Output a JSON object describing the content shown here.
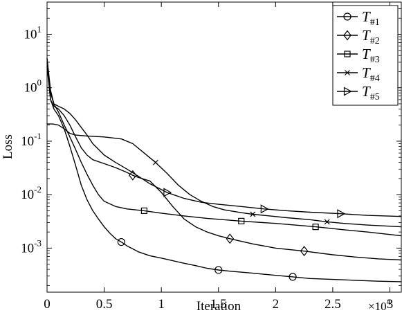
{
  "chart_data": {
    "type": "line",
    "title": "",
    "xlabel": "Iteration",
    "ylabel": "Loss",
    "x_multiplier_base": "×10",
    "x_multiplier_exp": "4",
    "xlim": [
      0,
      31000
    ],
    "ylim": [
      0.00015,
      40
    ],
    "yscale": "log",
    "x_ticks": [
      {
        "value": 0,
        "label": "0"
      },
      {
        "value": 5000,
        "label": "0.5"
      },
      {
        "value": 10000,
        "label": "1"
      },
      {
        "value": 15000,
        "label": "1.5"
      },
      {
        "value": 20000,
        "label": "2"
      },
      {
        "value": 25000,
        "label": "2.5"
      },
      {
        "value": 30000,
        "label": "3"
      }
    ],
    "y_ticks": [
      {
        "value": 0.001,
        "base": "10",
        "exp": "-3"
      },
      {
        "value": 0.01,
        "base": "10",
        "exp": "-2"
      },
      {
        "value": 0.1,
        "base": "10",
        "exp": "-1"
      },
      {
        "value": 1,
        "base": "10",
        "exp": "0"
      },
      {
        "value": 10,
        "base": "10",
        "exp": "1"
      }
    ],
    "grid": false,
    "legend_position": "top-right",
    "series": [
      {
        "name": "T",
        "subscript": "#1",
        "marker": "circle",
        "color": "#000000",
        "points": [
          [
            0,
            3.5
          ],
          [
            300,
            0.6
          ],
          [
            600,
            0.4
          ],
          [
            1000,
            0.3
          ],
          [
            1500,
            0.17
          ],
          [
            2000,
            0.08
          ],
          [
            2500,
            0.035
          ],
          [
            3000,
            0.015
          ],
          [
            3500,
            0.008
          ],
          [
            4000,
            0.005
          ],
          [
            4500,
            0.0035
          ],
          [
            5000,
            0.0025
          ],
          [
            5500,
            0.0019
          ],
          [
            6000,
            0.0015
          ],
          [
            6500,
            0.0013
          ],
          [
            7000,
            0.0011
          ],
          [
            8000,
            0.00085
          ],
          [
            9000,
            0.00072
          ],
          [
            10000,
            0.00065
          ],
          [
            11000,
            0.00058
          ],
          [
            12000,
            0.00052
          ],
          [
            13000,
            0.00047
          ],
          [
            14000,
            0.00042
          ],
          [
            15000,
            0.00039
          ],
          [
            16000,
            0.00037
          ],
          [
            18000,
            0.00034
          ],
          [
            20000,
            0.00031
          ],
          [
            21500,
            0.00029
          ],
          [
            23000,
            0.00027
          ],
          [
            25000,
            0.00026
          ],
          [
            27000,
            0.00025
          ],
          [
            29000,
            0.00024
          ],
          [
            31000,
            0.000235
          ]
        ],
        "markers": [
          [
            6500,
            0.0013
          ],
          [
            15000,
            0.00039
          ],
          [
            21500,
            0.00029
          ]
        ]
      },
      {
        "name": "T",
        "subscript": "#2",
        "marker": "diamond",
        "color": "#000000",
        "points": [
          [
            0,
            2.5
          ],
          [
            300,
            0.6
          ],
          [
            600,
            0.45
          ],
          [
            1000,
            0.4
          ],
          [
            1500,
            0.3
          ],
          [
            2000,
            0.2
          ],
          [
            2500,
            0.12
          ],
          [
            3000,
            0.075
          ],
          [
            3500,
            0.055
          ],
          [
            4000,
            0.045
          ],
          [
            5000,
            0.038
          ],
          [
            6000,
            0.032
          ],
          [
            7000,
            0.026
          ],
          [
            7500,
            0.023
          ],
          [
            8000,
            0.021
          ],
          [
            9000,
            0.018
          ],
          [
            10000,
            0.011
          ],
          [
            11000,
            0.006
          ],
          [
            12000,
            0.0035
          ],
          [
            13000,
            0.0025
          ],
          [
            14000,
            0.002
          ],
          [
            15000,
            0.0017
          ],
          [
            16000,
            0.0015
          ],
          [
            18000,
            0.0012
          ],
          [
            20000,
            0.001
          ],
          [
            22500,
            0.00088
          ],
          [
            25000,
            0.00075
          ],
          [
            27000,
            0.00068
          ],
          [
            29000,
            0.00063
          ],
          [
            31000,
            0.0006
          ]
        ],
        "markers": [
          [
            7500,
            0.023
          ],
          [
            16000,
            0.0015
          ],
          [
            22500,
            0.00088
          ]
        ]
      },
      {
        "name": "T",
        "subscript": "#3",
        "marker": "square",
        "color": "#000000",
        "points": [
          [
            0,
            3.0
          ],
          [
            300,
            0.8
          ],
          [
            600,
            0.5
          ],
          [
            1000,
            0.35
          ],
          [
            1500,
            0.2
          ],
          [
            2000,
            0.12
          ],
          [
            2500,
            0.07
          ],
          [
            3000,
            0.04
          ],
          [
            3500,
            0.024
          ],
          [
            4000,
            0.015
          ],
          [
            4500,
            0.01
          ],
          [
            5000,
            0.0075
          ],
          [
            6000,
            0.006
          ],
          [
            7000,
            0.0054
          ],
          [
            8500,
            0.005
          ],
          [
            10000,
            0.0045
          ],
          [
            12000,
            0.004
          ],
          [
            14000,
            0.0036
          ],
          [
            17000,
            0.0032
          ],
          [
            20000,
            0.0029
          ],
          [
            23500,
            0.0025
          ],
          [
            26000,
            0.0022
          ],
          [
            28000,
            0.002
          ],
          [
            31000,
            0.0017
          ]
        ],
        "markers": [
          [
            8500,
            0.005
          ],
          [
            17000,
            0.0032
          ],
          [
            23500,
            0.0025
          ]
        ]
      },
      {
        "name": "T",
        "subscript": "#4",
        "marker": "x",
        "color": "#000000",
        "points": [
          [
            0,
            0.21
          ],
          [
            500,
            0.21
          ],
          [
            1000,
            0.2
          ],
          [
            1500,
            0.17
          ],
          [
            2000,
            0.14
          ],
          [
            2500,
            0.13
          ],
          [
            3500,
            0.125
          ],
          [
            5000,
            0.12
          ],
          [
            6500,
            0.11
          ],
          [
            7500,
            0.09
          ],
          [
            8500,
            0.06
          ],
          [
            9500,
            0.04
          ],
          [
            10500,
            0.025
          ],
          [
            11500,
            0.015
          ],
          [
            12500,
            0.01
          ],
          [
            13500,
            0.0075
          ],
          [
            14500,
            0.006
          ],
          [
            15500,
            0.0052
          ],
          [
            17000,
            0.0046
          ],
          [
            18000,
            0.0043
          ],
          [
            19500,
            0.004
          ],
          [
            21000,
            0.0037
          ],
          [
            23000,
            0.0034
          ],
          [
            24500,
            0.0031
          ],
          [
            26000,
            0.0029
          ],
          [
            28000,
            0.0027
          ],
          [
            31000,
            0.0025
          ]
        ],
        "markers": [
          [
            9500,
            0.04
          ],
          [
            18000,
            0.0043
          ],
          [
            24500,
            0.0031
          ]
        ]
      },
      {
        "name": "T",
        "subscript": "#5",
        "marker": "triangle-right",
        "color": "#000000",
        "points": [
          [
            0,
            3.6
          ],
          [
            300,
            0.9
          ],
          [
            600,
            0.5
          ],
          [
            1000,
            0.45
          ],
          [
            1500,
            0.4
          ],
          [
            2000,
            0.33
          ],
          [
            2500,
            0.25
          ],
          [
            3000,
            0.18
          ],
          [
            3500,
            0.13
          ],
          [
            4000,
            0.09
          ],
          [
            5000,
            0.055
          ],
          [
            6000,
            0.04
          ],
          [
            7000,
            0.03
          ],
          [
            8000,
            0.022
          ],
          [
            9000,
            0.016
          ],
          [
            10500,
            0.011
          ],
          [
            12000,
            0.0085
          ],
          [
            13500,
            0.0072
          ],
          [
            15000,
            0.0066
          ],
          [
            17000,
            0.006
          ],
          [
            19000,
            0.0054
          ],
          [
            21000,
            0.005
          ],
          [
            23000,
            0.0047
          ],
          [
            25700,
            0.0044
          ],
          [
            28000,
            0.0041
          ],
          [
            31000,
            0.0039
          ]
        ],
        "markers": [
          [
            10500,
            0.011
          ],
          [
            19000,
            0.0054
          ],
          [
            25700,
            0.0044
          ]
        ]
      }
    ]
  }
}
